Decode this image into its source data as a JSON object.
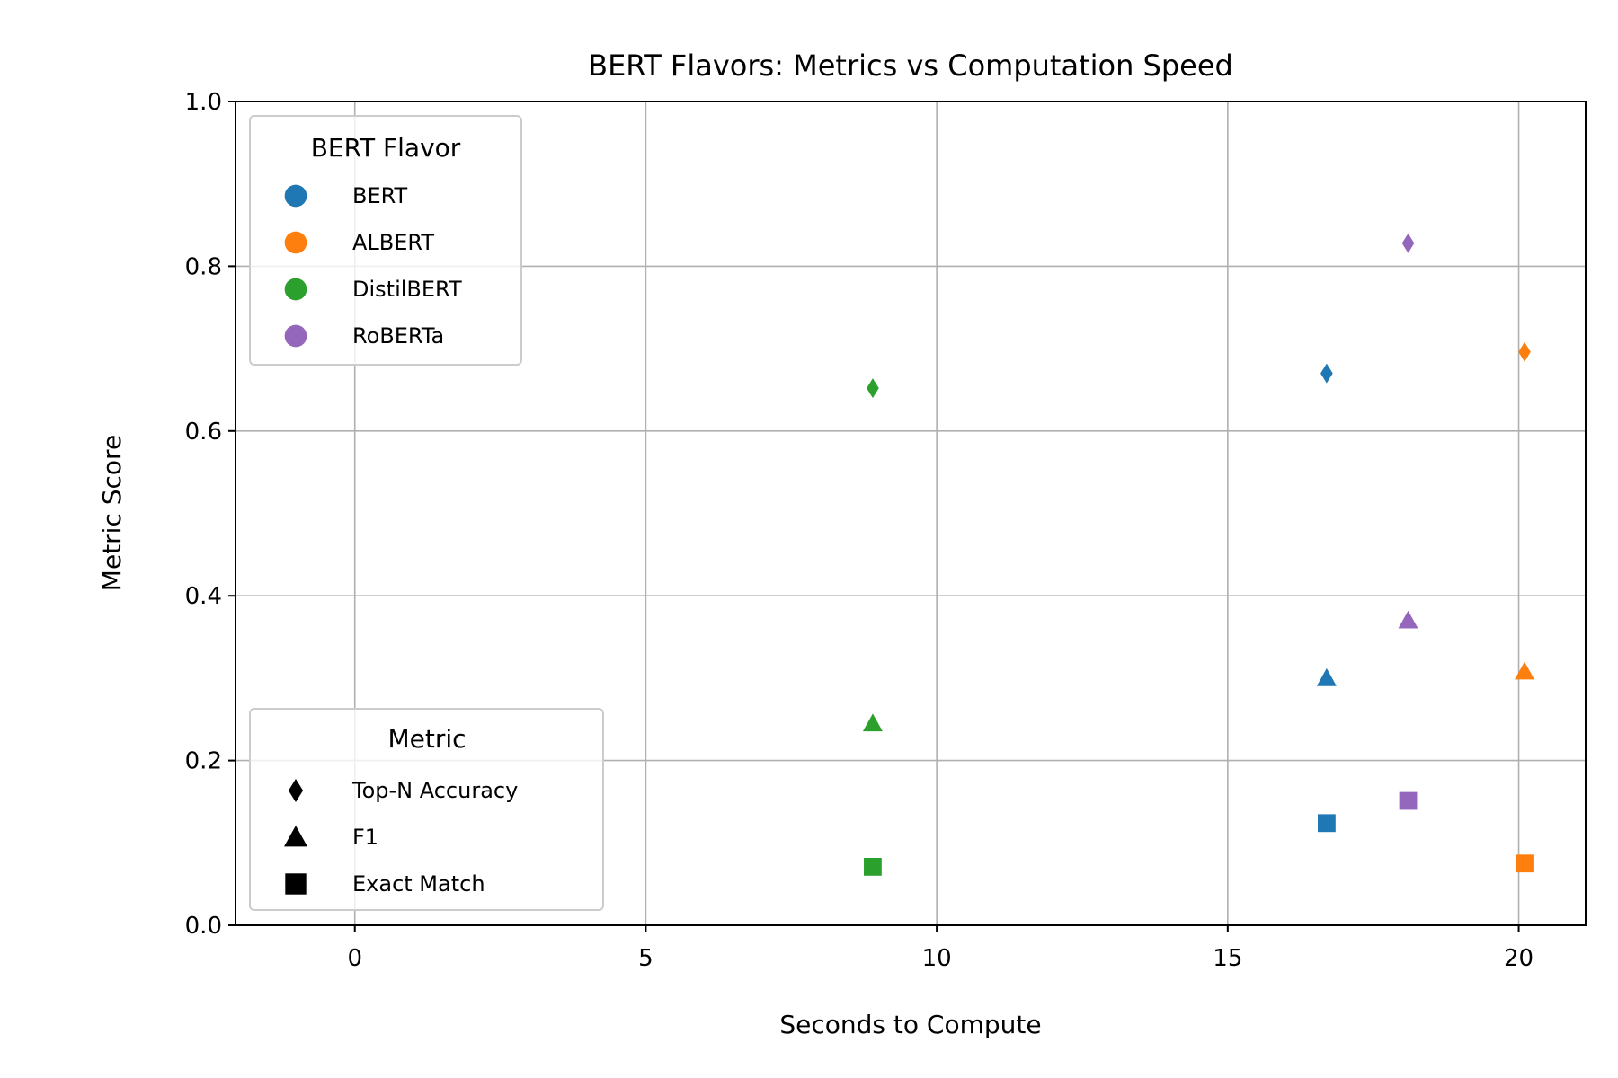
{
  "chart_data": {
    "type": "scatter",
    "title": "BERT Flavors: Metrics vs Computation Speed",
    "xlabel": "Seconds to Compute",
    "ylabel": "Metric Score",
    "xlim": [
      -2.05,
      21.15
    ],
    "ylim": [
      0.0,
      1.0
    ],
    "xticks": [
      0,
      5,
      10,
      15,
      20
    ],
    "xtick_labels": [
      "0",
      "5",
      "10",
      "15",
      "20"
    ],
    "yticks": [
      0.0,
      0.2,
      0.4,
      0.6,
      0.8,
      1.0
    ],
    "ytick_labels": [
      "0.0",
      "0.2",
      "0.4",
      "0.6",
      "0.8",
      "1.0"
    ],
    "grid": true,
    "legends": {
      "flavor": {
        "title": "BERT Flavor",
        "placement": "upper-left",
        "entries": [
          {
            "label": "BERT",
            "color": "#1f77b4"
          },
          {
            "label": "ALBERT",
            "color": "#ff7f0e"
          },
          {
            "label": "DistilBERT",
            "color": "#2ca02c"
          },
          {
            "label": "RoBERTa",
            "color": "#9467bd"
          }
        ]
      },
      "metric": {
        "title": "Metric",
        "placement": "lower-left",
        "entries": [
          {
            "label": "Top-N Accuracy",
            "marker": "diamond"
          },
          {
            "label": "F1",
            "marker": "triangle"
          },
          {
            "label": "Exact Match",
            "marker": "square"
          }
        ]
      }
    },
    "series": [
      {
        "flavor": "BERT",
        "color": "#1f77b4",
        "x": 16.7,
        "points": [
          {
            "metric": "Top-N Accuracy",
            "marker": "diamond",
            "y": 0.67
          },
          {
            "metric": "F1",
            "marker": "triangle",
            "y": 0.3
          },
          {
            "metric": "Exact Match",
            "marker": "square",
            "y": 0.124
          }
        ]
      },
      {
        "flavor": "ALBERT",
        "color": "#ff7f0e",
        "x": 20.1,
        "points": [
          {
            "metric": "Top-N Accuracy",
            "marker": "diamond",
            "y": 0.696
          },
          {
            "metric": "F1",
            "marker": "triangle",
            "y": 0.308
          },
          {
            "metric": "Exact Match",
            "marker": "square",
            "y": 0.075
          }
        ]
      },
      {
        "flavor": "DistilBERT",
        "color": "#2ca02c",
        "x": 8.9,
        "points": [
          {
            "metric": "Top-N Accuracy",
            "marker": "diamond",
            "y": 0.652
          },
          {
            "metric": "F1",
            "marker": "triangle",
            "y": 0.245
          },
          {
            "metric": "Exact Match",
            "marker": "square",
            "y": 0.071
          }
        ]
      },
      {
        "flavor": "RoBERTa",
        "color": "#9467bd",
        "x": 18.1,
        "points": [
          {
            "metric": "Top-N Accuracy",
            "marker": "diamond",
            "y": 0.828
          },
          {
            "metric": "F1",
            "marker": "triangle",
            "y": 0.37
          },
          {
            "metric": "Exact Match",
            "marker": "square",
            "y": 0.151
          }
        ]
      }
    ]
  }
}
